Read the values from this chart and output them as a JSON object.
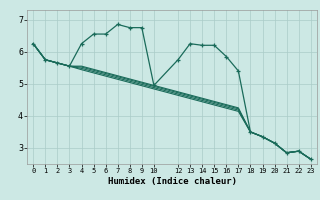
{
  "xlabel": "Humidex (Indice chaleur)",
  "xlim": [
    -0.5,
    23.5
  ],
  "ylim": [
    2.5,
    7.3
  ],
  "yticks": [
    3,
    4,
    5,
    6,
    7
  ],
  "xticks": [
    0,
    1,
    2,
    3,
    4,
    5,
    6,
    7,
    8,
    9,
    10,
    12,
    13,
    14,
    15,
    16,
    17,
    18,
    19,
    20,
    21,
    22,
    23
  ],
  "bg_color": "#cce8e4",
  "grid_color": "#aaccc8",
  "line_color": "#1a6b5a",
  "line1_x": [
    0,
    1,
    2,
    3,
    4,
    5,
    6,
    7,
    8,
    9,
    10,
    12,
    13,
    14,
    15,
    16,
    17,
    18,
    19,
    20,
    21,
    22,
    23
  ],
  "line1_y": [
    6.25,
    5.75,
    5.65,
    5.55,
    6.25,
    6.55,
    6.55,
    6.85,
    6.75,
    6.75,
    4.95,
    5.75,
    6.25,
    6.2,
    6.2,
    5.85,
    5.4,
    3.5,
    3.35,
    3.15,
    2.85,
    2.9,
    2.65
  ],
  "line2_x": [
    0,
    1,
    2,
    3,
    4,
    5,
    6,
    7,
    8,
    9,
    10,
    12,
    13,
    14,
    15,
    16,
    17,
    18,
    19,
    20,
    21,
    22,
    23
  ],
  "line2_y": [
    6.25,
    5.75,
    5.65,
    5.55,
    5.55,
    5.45,
    5.35,
    5.25,
    5.15,
    5.05,
    4.95,
    4.75,
    4.65,
    4.55,
    4.45,
    4.35,
    4.25,
    3.5,
    3.35,
    3.15,
    2.85,
    2.9,
    2.65
  ],
  "line3_x": [
    0,
    1,
    2,
    3,
    4,
    5,
    6,
    7,
    8,
    9,
    10,
    12,
    13,
    14,
    15,
    16,
    17,
    18,
    19,
    20,
    21,
    22,
    23
  ],
  "line3_y": [
    6.25,
    5.75,
    5.65,
    5.55,
    5.52,
    5.42,
    5.32,
    5.22,
    5.12,
    5.02,
    4.92,
    4.72,
    4.62,
    4.52,
    4.42,
    4.32,
    4.22,
    3.5,
    3.35,
    3.15,
    2.85,
    2.9,
    2.65
  ],
  "line4_x": [
    0,
    1,
    2,
    3,
    4,
    5,
    6,
    7,
    8,
    9,
    10,
    12,
    13,
    14,
    15,
    16,
    17,
    18,
    19,
    20,
    21,
    22,
    23
  ],
  "line4_y": [
    6.25,
    5.75,
    5.65,
    5.55,
    5.48,
    5.38,
    5.28,
    5.18,
    5.08,
    4.98,
    4.88,
    4.68,
    4.58,
    4.48,
    4.38,
    4.28,
    4.18,
    3.5,
    3.35,
    3.15,
    2.85,
    2.9,
    2.65
  ],
  "line5_x": [
    0,
    1,
    2,
    3,
    4,
    5,
    6,
    7,
    8,
    9,
    10,
    12,
    13,
    14,
    15,
    16,
    17,
    18,
    19,
    20,
    21,
    22,
    23
  ],
  "line5_y": [
    6.25,
    5.75,
    5.65,
    5.55,
    5.44,
    5.34,
    5.24,
    5.14,
    5.04,
    4.94,
    4.84,
    4.64,
    4.54,
    4.44,
    4.34,
    4.24,
    4.14,
    3.5,
    3.35,
    3.15,
    2.85,
    2.9,
    2.65
  ]
}
